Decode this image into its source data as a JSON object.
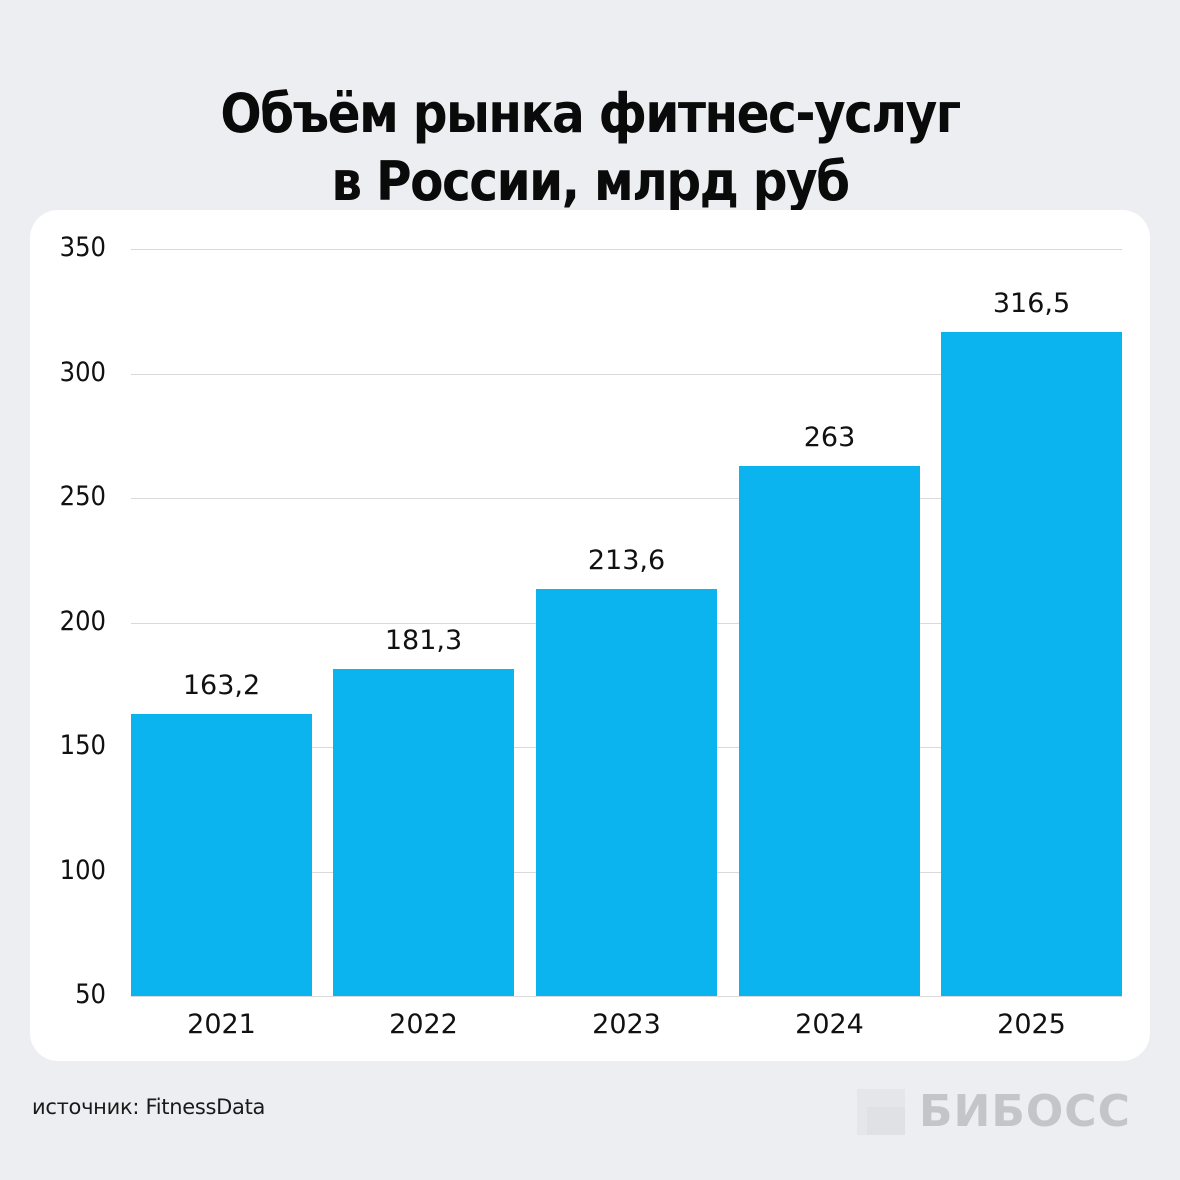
{
  "title": {
    "line1": "Объём рынка фитнес-услуг",
    "line2": "в России, млрд руб"
  },
  "footer": {
    "source": "источник: FitnessData",
    "logo": "БИБОСС"
  },
  "colors": {
    "bar": "#0bb4ee",
    "background": "#edeef2",
    "card": "#ffffff",
    "grid": "#d9d9d9"
  },
  "chart_data": {
    "type": "bar",
    "title": "Объём рынка фитнес-услуг в России, млрд руб",
    "categories": [
      "2021",
      "2022",
      "2023",
      "2024",
      "2025"
    ],
    "values": [
      163.2,
      181.3,
      213.6,
      263,
      316.5
    ],
    "value_labels": [
      "163,2",
      "181,3",
      "213,6",
      "263",
      "316,5"
    ],
    "xlabel": "",
    "ylabel": "",
    "ylim": [
      50,
      350
    ],
    "yticks": [
      "350",
      "300",
      "250",
      "200",
      "150",
      "100",
      "50"
    ],
    "grid": true,
    "legend": null,
    "source": "FitnessData"
  }
}
